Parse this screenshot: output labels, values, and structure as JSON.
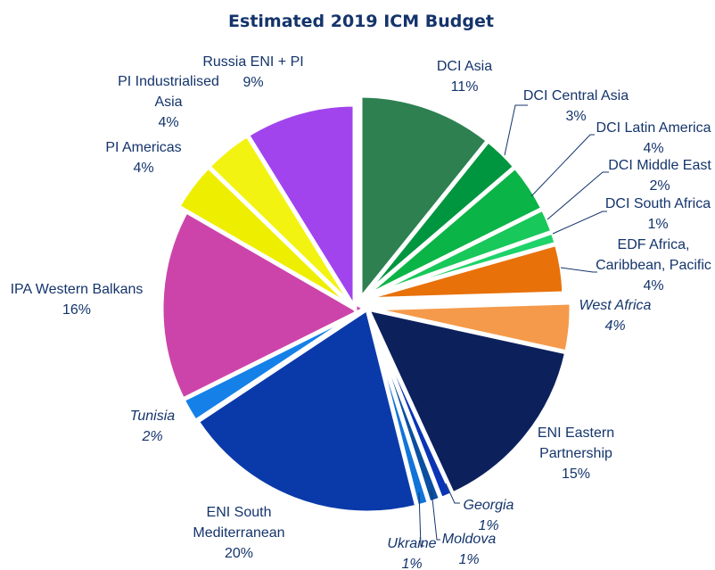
{
  "chart_data": {
    "type": "pie",
    "title": "Estimated 2019 ICM Budget",
    "slices": [
      {
        "name": "DCI Asia",
        "label": "DCI Asia",
        "pct_label": "11%",
        "value": 11,
        "color": "#2e8051",
        "italic": false,
        "explode": 0
      },
      {
        "name": "DCI Central Asia",
        "label": "DCI Central Asia",
        "pct_label": "3%",
        "value": 3,
        "color": "#00963f",
        "italic": false,
        "explode": 0
      },
      {
        "name": "DCI Latin America",
        "label": "DCI Latin America",
        "pct_label": "4%",
        "value": 4,
        "color": "#0bb446",
        "italic": false,
        "explode": 0
      },
      {
        "name": "DCI Middle East",
        "label": "DCI Middle East",
        "pct_label": "2%",
        "value": 2,
        "color": "#18c85a",
        "italic": false,
        "explode": 0
      },
      {
        "name": "DCI South Africa",
        "label": "DCI South Africa",
        "pct_label": "1%",
        "value": 1,
        "color": "#1ed36a",
        "italic": false,
        "explode": 0
      },
      {
        "name": "EDF Africa, Caribbean, Pacific",
        "label": "EDF Africa,|Caribbean, Pacific",
        "pct_label": "4%",
        "value": 4,
        "color": "#e8710a",
        "italic": false,
        "explode": 0
      },
      {
        "name": "West Africa",
        "label": "West Africa",
        "pct_label": "4%",
        "value": 4,
        "color": "#f59a4a",
        "italic": true,
        "explode": 1
      },
      {
        "name": "ENI Eastern Partnership",
        "label": "ENI Eastern|Partnership",
        "pct_label": "15%",
        "value": 15,
        "color": "#0c215c",
        "italic": false,
        "explode": 1
      },
      {
        "name": "Georgia",
        "label": "Georgia",
        "pct_label": "1%",
        "value": 1,
        "color": "#0a35b4",
        "italic": true,
        "explode": 1
      },
      {
        "name": "Moldova",
        "label": "Moldova",
        "pct_label": "1%",
        "value": 1,
        "color": "#0b4fa0",
        "italic": true,
        "explode": 1
      },
      {
        "name": "Ukraine",
        "label": "Ukraine",
        "pct_label": "1%",
        "value": 1,
        "color": "#1273d8",
        "italic": true,
        "explode": 1
      },
      {
        "name": "ENI South Mediterranean",
        "label": "ENI South|Mediterranean",
        "pct_label": "20%",
        "value": 20,
        "color": "#0a3aaa",
        "italic": false,
        "explode": 1
      },
      {
        "name": "Tunisia",
        "label": "Tunisia",
        "pct_label": "2%",
        "value": 2,
        "color": "#1581e8",
        "italic": true,
        "explode": 2
      },
      {
        "name": "IPA Western Balkans",
        "label": "IPA Western Balkans",
        "pct_label": "16%",
        "value": 16,
        "color": "#cc44aa",
        "italic": false,
        "explode": 2
      },
      {
        "name": "PI Americas",
        "label": "PI Americas",
        "pct_label": "4%",
        "value": 4,
        "color": "#eeee00",
        "italic": false,
        "explode": 3
      },
      {
        "name": "PI Industrialised Asia",
        "label": "PI Industrialised|Asia",
        "pct_label": "4%",
        "value": 4,
        "color": "#f3f312",
        "italic": false,
        "explode": 3
      },
      {
        "name": "Russia ENI + PI",
        "label": "Russia ENI + PI",
        "pct_label": "9%",
        "value": 9,
        "color": "#a144ee",
        "italic": false,
        "explode": 3
      }
    ]
  }
}
